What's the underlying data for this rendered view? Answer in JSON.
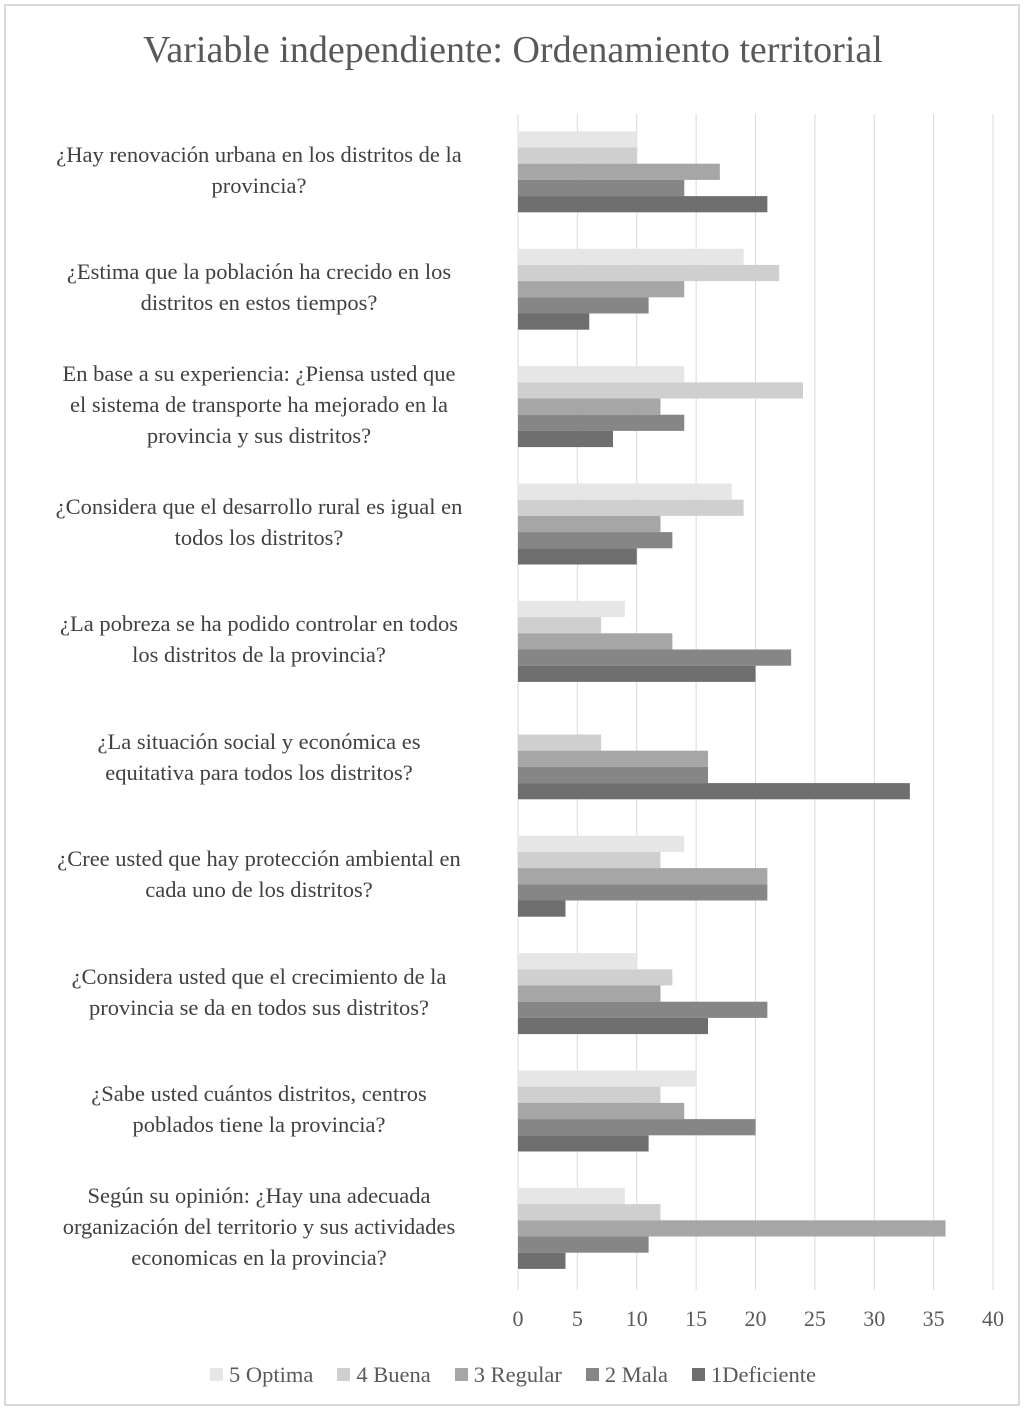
{
  "chart_data": {
    "type": "bar",
    "orientation": "horizontal",
    "title": "Variable independiente: Ordenamiento  territorial",
    "categories": [
      "¿Hay renovación urbana en los distritos de la provincia?",
      "¿Estima que la población ha crecido en los distritos en estos tiempos?",
      "En base a su experiencia: ¿Piensa usted que el sistema de transporte ha mejorado en la provincia y sus distritos?",
      "¿Considera que el desarrollo rural es igual en todos los distritos?",
      "¿La pobreza se ha podido controlar en todos los distritos de la provincia?",
      "¿La situación social y económica es equitativa para todos los distritos?",
      "¿Cree usted que hay protección ambiental en cada uno de los distritos?",
      "¿Considera usted que el crecimiento de la provincia se da en todos sus distritos?",
      "¿Sabe usted cuántos distritos, centros poblados tiene la provincia?",
      "Según su opinión: ¿Hay una adecuada organización del territorio y sus actividades economicas en la provincia?"
    ],
    "category_lines": [
      [
        "¿Hay renovación urbana en los distritos de la",
        "provincia?"
      ],
      [
        "¿Estima que la población ha crecido en los",
        "distritos en estos tiempos?"
      ],
      [
        "En base a su experiencia: ¿Piensa usted que",
        "el sistema de transporte ha mejorado en la",
        "provincia y sus distritos?"
      ],
      [
        "¿Considera que el desarrollo rural es igual en",
        "todos los distritos?"
      ],
      [
        "¿La pobreza se ha podido controlar en todos",
        "los distritos de la provincia?"
      ],
      [
        "¿La situación social y económica es",
        "equitativa para todos los distritos?"
      ],
      [
        "¿Cree usted que hay protección ambiental en",
        "cada uno de los distritos?"
      ],
      [
        "¿Considera usted que el crecimiento de la",
        "provincia se da en todos sus distritos?"
      ],
      [
        "¿Sabe usted cuántos distritos, centros",
        "poblados tiene la provincia?"
      ],
      [
        "Según su opinión: ¿Hay una adecuada",
        "organización del territorio y sus actividades",
        "economicas en la provincia?"
      ]
    ],
    "series": [
      {
        "name": "5 Optima",
        "color": "#e6e6e6",
        "values": [
          10,
          19,
          14,
          18,
          9,
          0,
          14,
          10,
          15,
          9
        ]
      },
      {
        "name": "4 Buena",
        "color": "#cfcfcf",
        "values": [
          10,
          22,
          24,
          19,
          7,
          7,
          12,
          13,
          12,
          12
        ]
      },
      {
        "name": "3 Regular",
        "color": "#a6a6a6",
        "values": [
          17,
          14,
          12,
          12,
          13,
          16,
          21,
          12,
          14,
          36
        ]
      },
      {
        "name": "2 Mala",
        "color": "#868686",
        "values": [
          14,
          11,
          14,
          13,
          23,
          16,
          21,
          21,
          20,
          11
        ]
      },
      {
        "name": "1Deficiente",
        "color": "#6e6e6e",
        "values": [
          21,
          6,
          8,
          10,
          20,
          33,
          4,
          16,
          11,
          4
        ]
      }
    ],
    "xlim": [
      0,
      40
    ],
    "xticks": [
      "0",
      "5",
      "10",
      "15",
      "20",
      "25",
      "30",
      "35",
      "40"
    ],
    "grid": true,
    "legend_position": "bottom"
  }
}
